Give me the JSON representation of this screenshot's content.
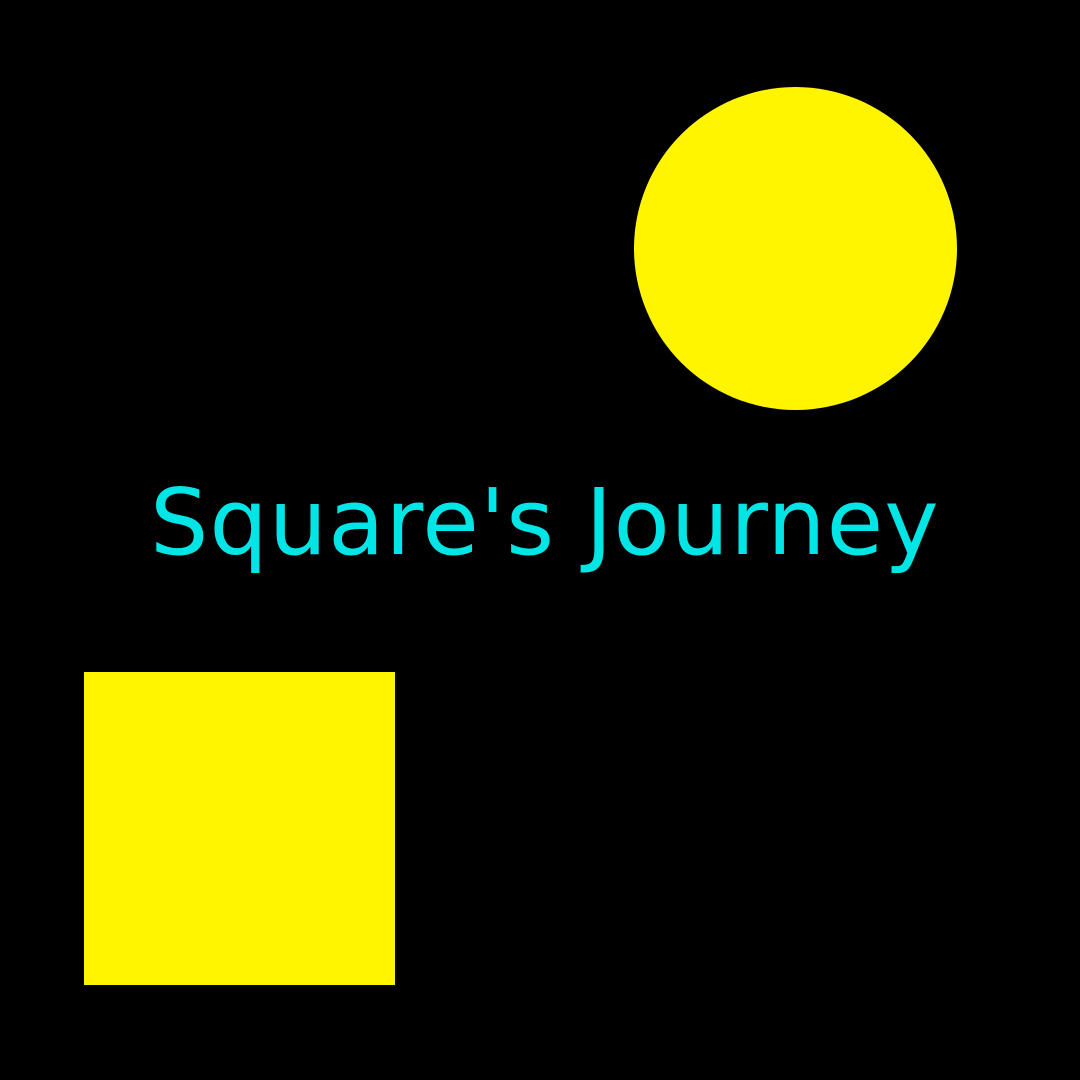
{
  "title": "Square's Journey",
  "colors": {
    "background": "#000000",
    "sun": "#fff500",
    "square": "#fff500",
    "title": "#00e5e5"
  }
}
